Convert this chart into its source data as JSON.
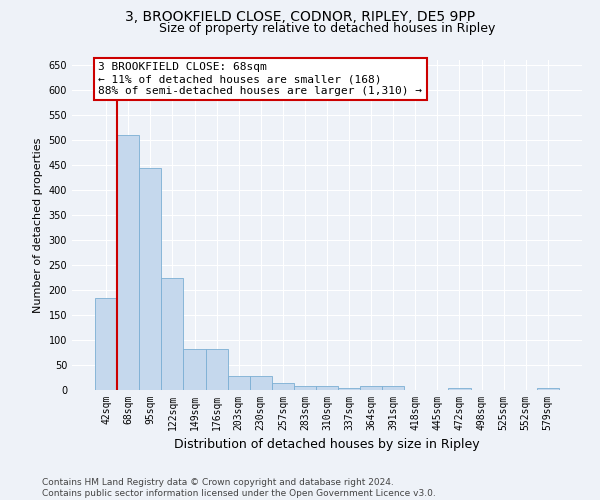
{
  "title": "3, BROOKFIELD CLOSE, CODNOR, RIPLEY, DE5 9PP",
  "subtitle": "Size of property relative to detached houses in Ripley",
  "xlabel": "Distribution of detached houses by size in Ripley",
  "ylabel": "Number of detached properties",
  "categories": [
    "42sqm",
    "68sqm",
    "95sqm",
    "122sqm",
    "149sqm",
    "176sqm",
    "203sqm",
    "230sqm",
    "257sqm",
    "283sqm",
    "310sqm",
    "337sqm",
    "364sqm",
    "391sqm",
    "418sqm",
    "445sqm",
    "472sqm",
    "498sqm",
    "525sqm",
    "552sqm",
    "579sqm"
  ],
  "values": [
    185,
    510,
    445,
    225,
    83,
    83,
    28,
    28,
    15,
    8,
    8,
    5,
    8,
    8,
    0,
    0,
    5,
    0,
    0,
    0,
    5
  ],
  "bar_color": "#c5d8ed",
  "bar_edge_color": "#7bafd4",
  "highlight_index": 1,
  "highlight_color": "#cc0000",
  "ylim": [
    0,
    660
  ],
  "yticks": [
    0,
    50,
    100,
    150,
    200,
    250,
    300,
    350,
    400,
    450,
    500,
    550,
    600,
    650
  ],
  "annotation_text": "3 BROOKFIELD CLOSE: 68sqm\n← 11% of detached houses are smaller (168)\n88% of semi-detached houses are larger (1,310) →",
  "annotation_box_color": "#ffffff",
  "annotation_border_color": "#cc0000",
  "footer_text": "Contains HM Land Registry data © Crown copyright and database right 2024.\nContains public sector information licensed under the Open Government Licence v3.0.",
  "background_color": "#eef2f8",
  "grid_color": "#ffffff",
  "title_fontsize": 10,
  "subtitle_fontsize": 9,
  "xlabel_fontsize": 9,
  "ylabel_fontsize": 8,
  "tick_fontsize": 7,
  "annotation_fontsize": 8,
  "footer_fontsize": 6.5
}
